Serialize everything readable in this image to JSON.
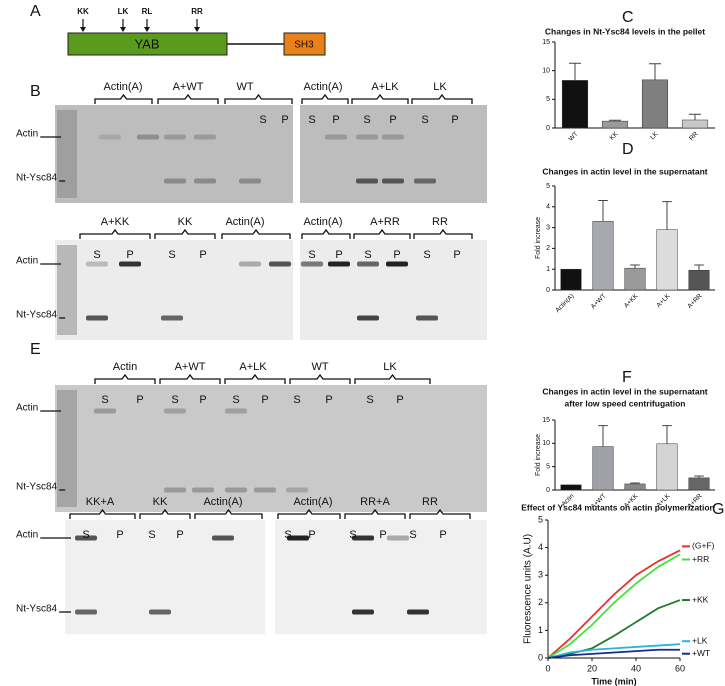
{
  "panel_a": {
    "label": "A",
    "mutations": [
      "KK",
      "LK",
      "RL",
      "RR"
    ],
    "domains": [
      "YAB",
      "SH3"
    ]
  },
  "panel_b": {
    "label": "B",
    "rows": [
      {
        "markers": [
          "Actin",
          "Nt-Ysc84"
        ],
        "gels": [
          {
            "groups": [
              "Actin(A)",
              "A+WT",
              "WT"
            ],
            "lanes": [
              "S",
              "P"
            ]
          },
          {
            "groups": [
              "Actin(A)",
              "A+LK",
              "LK"
            ],
            "lanes": [
              "S",
              "P",
              "S",
              "P",
              "S",
              "P"
            ]
          }
        ]
      },
      {
        "markers": [
          "Actin",
          "Nt-Ysc84"
        ],
        "gels": [
          {
            "groups": [
              "A+KK",
              "KK",
              "Actin(A)"
            ],
            "lanes": [
              "S",
              "P",
              "S",
              "P"
            ]
          },
          {
            "groups": [
              "Actin(A)",
              "A+RR",
              "RR"
            ],
            "lanes": [
              "S",
              "P",
              "S",
              "P",
              "S",
              "P"
            ]
          }
        ]
      }
    ]
  },
  "panel_e": {
    "label": "E",
    "rows": [
      {
        "markers": [
          "Actin",
          "Nt-Ysc84"
        ],
        "gels": [
          {
            "groups": [
              "Actin",
              "A+WT",
              "A+LK",
              "WT",
              "LK"
            ],
            "lanes": [
              "S",
              "P",
              "S",
              "P",
              "S",
              "P",
              "S",
              "P",
              "S",
              "P"
            ]
          }
        ]
      },
      {
        "markers": [
          "Actin",
          "Nt-Ysc84"
        ],
        "gels": [
          {
            "groups": [
              "KK+A",
              "KK",
              "Actin(A)"
            ],
            "lanes": [
              "S",
              "P",
              "S",
              "P"
            ]
          },
          {
            "groups": [
              "Actin(A)",
              "RR+A",
              "RR"
            ],
            "lanes": [
              "S",
              "P",
              "S",
              "P",
              "S",
              "P"
            ]
          }
        ]
      }
    ]
  },
  "chart_data": [
    {
      "type": "bar",
      "panel": "C",
      "title": "Changes in Nt-Ysc84 levels in the pellet",
      "categories": [
        "WT",
        "KK",
        "LK",
        "RR"
      ],
      "values": [
        8.3,
        1.2,
        8.4,
        1.4
      ],
      "errors": [
        3,
        0.15,
        2.8,
        1
      ],
      "colors": [
        "#111111",
        "#9a9a9a",
        "#7f7f7f",
        "#c8c8c8"
      ],
      "ylim": [
        0,
        15
      ],
      "yticks": [
        0,
        5,
        10,
        15
      ]
    },
    {
      "type": "bar",
      "panel": "D",
      "title": "Changes in actin level in the supernatant",
      "y_label": "Fold increase",
      "categories": [
        "Actin(A)",
        "A+WT",
        "A+KK",
        "A+LK",
        "A+RR"
      ],
      "values": [
        1,
        3.3,
        1.05,
        2.9,
        0.95
      ],
      "errors": [
        null,
        1,
        0.15,
        1.35,
        0.25
      ],
      "colors": [
        "#111111",
        "#a8a8b0",
        "#9a9a9a",
        "#dcdcdc",
        "#555555"
      ],
      "ylim": [
        0,
        5
      ],
      "yticks": [
        0,
        1,
        2,
        3,
        4,
        5
      ]
    },
    {
      "type": "bar",
      "panel": "F",
      "title": [
        "Changes in actin level in the supernatant",
        "after low speed centrifugation"
      ],
      "y_label": "Fold increase",
      "categories": [
        "Actin",
        "A+WT",
        "A+KK",
        "A+LK",
        "A+RR"
      ],
      "values": [
        1.1,
        9.3,
        1.3,
        9.9,
        2.6
      ],
      "errors": [
        null,
        4.5,
        0.2,
        3.9,
        0.4
      ],
      "colors": [
        "#111111",
        "#a0a0a8",
        "#888888",
        "#d4d4d4",
        "#666666"
      ],
      "ylim": [
        0,
        15
      ],
      "yticks": [
        0,
        5,
        10,
        15
      ]
    },
    {
      "type": "line",
      "panel": "G",
      "title": "Effect of Ysc84 mutants on actin polymerization",
      "x_label": "Time (min)",
      "y_label": "Fluorescence units (A.U)",
      "x": [
        0,
        10,
        20,
        30,
        40,
        50,
        60
      ],
      "series": [
        {
          "name": "(G+F)",
          "color": "#e8312a",
          "values": [
            0,
            0.7,
            1.5,
            2.3,
            3.0,
            3.5,
            3.9
          ]
        },
        {
          "name": "+RR",
          "color": "#3ee63a",
          "values": [
            0,
            0.5,
            1.2,
            2.0,
            2.7,
            3.3,
            3.75
          ]
        },
        {
          "name": "+KK",
          "color": "#1e7d2a",
          "values": [
            0,
            0.15,
            0.35,
            0.8,
            1.3,
            1.8,
            2.1
          ]
        },
        {
          "name": "+LK",
          "color": "#2ab4d8",
          "values": [
            0,
            0.2,
            0.3,
            0.35,
            0.4,
            0.45,
            0.5
          ]
        },
        {
          "name": "+WT",
          "color": "#1a2a8c",
          "values": [
            0,
            0.1,
            0.15,
            0.2,
            0.25,
            0.3,
            0.3
          ]
        }
      ],
      "xlim": [
        0,
        60
      ],
      "xticks": [
        0,
        20,
        40,
        60
      ],
      "ylim": [
        0,
        5
      ],
      "yticks": [
        0,
        1,
        2,
        3,
        4,
        5
      ]
    }
  ]
}
